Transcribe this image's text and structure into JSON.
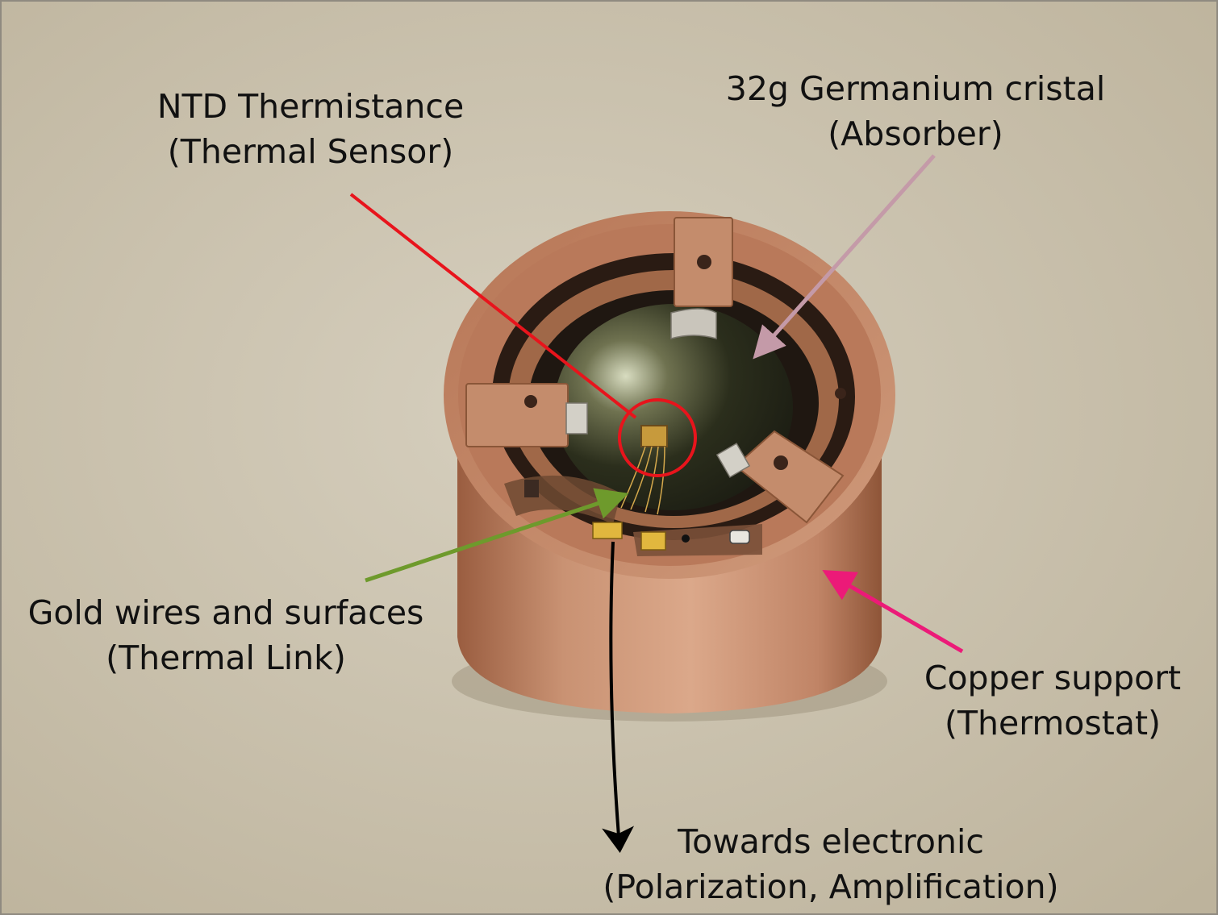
{
  "annotations": {
    "ntd_sensor": {
      "title": "NTD Thermistance",
      "subtitle": "(Thermal Sensor)",
      "arrow_color": "#e8141c"
    },
    "germanium": {
      "title": "32g Germanium cristal",
      "subtitle": "(Absorber)",
      "arrow_color": "#c49aa8"
    },
    "gold_wires": {
      "title": "Gold wires and surfaces",
      "subtitle": "(Thermal Link)",
      "arrow_color": "#6e9a2c"
    },
    "copper_support": {
      "title": "Copper support",
      "subtitle": "(Thermostat)",
      "arrow_color": "#ec1a78"
    },
    "electronics": {
      "title": "Towards electronic",
      "subtitle": "(Polarization, Amplification)",
      "arrow_color": "#000000"
    }
  },
  "colors": {
    "background": "#cfc7b4",
    "copper": "#c28a6a",
    "crystal": "#2c2e1c"
  }
}
